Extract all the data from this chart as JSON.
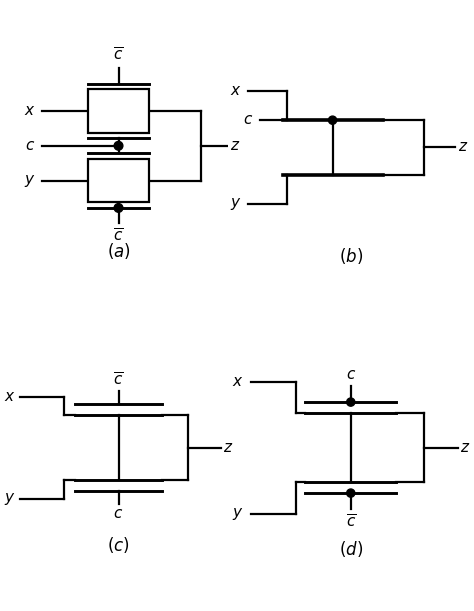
{
  "background": "#ffffff",
  "line_color": "#000000",
  "line_width": 1.6,
  "font_size": 11,
  "label_font_size": 12
}
